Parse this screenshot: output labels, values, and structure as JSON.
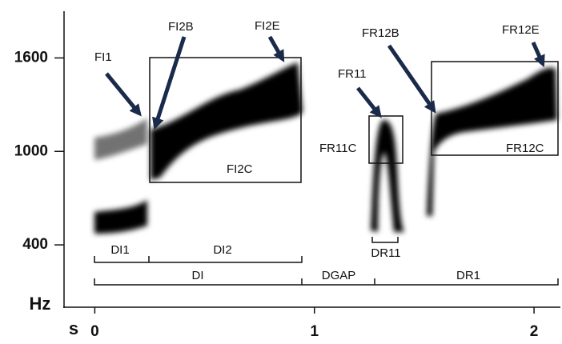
{
  "chart_data": {
    "type": "spectrogram",
    "xlabel": "s",
    "ylabel": "Hz",
    "xlim": [
      -0.14,
      2.12
    ],
    "ylim": [
      0,
      1900
    ],
    "xticks": [
      0,
      1,
      2
    ],
    "yticks": [
      400,
      1000,
      1600
    ],
    "annotations": {
      "arrows": [
        "FI1",
        "FI2B",
        "FI2E",
        "FR11",
        "FR12B",
        "FR12E"
      ],
      "boxes": [
        "FI2C",
        "FR11C",
        "FR12C"
      ],
      "durations": [
        "DI1",
        "DI2",
        "DI",
        "DGAP",
        "DR1",
        "DR11"
      ]
    }
  }
}
